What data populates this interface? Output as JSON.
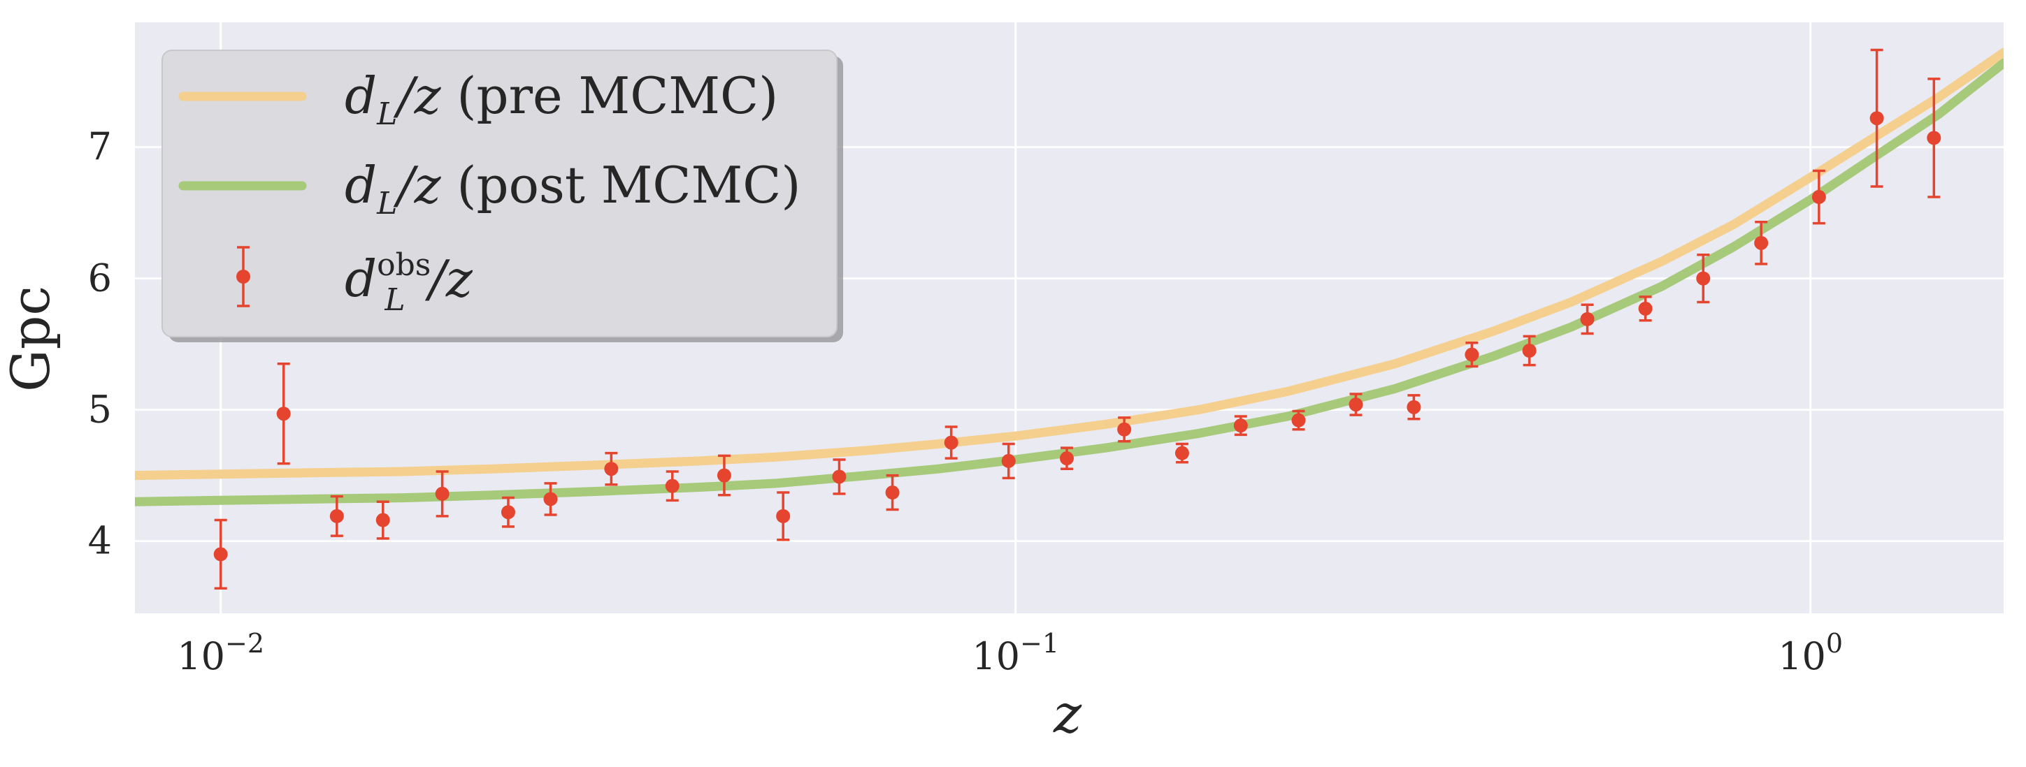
{
  "chart_data": {
    "type": "line",
    "xscale": "log",
    "xlim": [
      0.0078,
      1.75
    ],
    "ylim": [
      3.45,
      7.95
    ],
    "xlabel": "z",
    "ylabel": "Gpc",
    "grid": true,
    "legend_placement": "upper-left",
    "x_ticks": [
      {
        "value": 0.01,
        "base": "10",
        "exp": "−2"
      },
      {
        "value": 0.1,
        "base": "10",
        "exp": "−1"
      },
      {
        "value": 1,
        "base": "10",
        "exp": "0"
      }
    ],
    "y_ticks": [
      {
        "value": 4,
        "label": "4"
      },
      {
        "value": 5,
        "label": "5"
      },
      {
        "value": 6,
        "label": "6"
      },
      {
        "value": 7,
        "label": "7"
      }
    ],
    "colors": {
      "background": "#eaeaf2",
      "grid": "#ffffff",
      "pre": "#f5cf8e",
      "post": "#a6c97a",
      "obs": "#e5452f"
    },
    "series": [
      {
        "name": "d_L/z (pre MCMC)",
        "kind": "line",
        "color": "#f5cf8e",
        "x": [
          0.0078,
          0.01,
          0.013,
          0.017,
          0.022,
          0.03,
          0.04,
          0.05,
          0.065,
          0.08,
          0.1,
          0.13,
          0.17,
          0.22,
          0.3,
          0.4,
          0.5,
          0.65,
          0.8,
          1.0,
          1.2,
          1.45,
          1.75
        ],
        "y": [
          4.5,
          4.51,
          4.52,
          4.53,
          4.55,
          4.58,
          4.61,
          4.64,
          4.69,
          4.74,
          4.8,
          4.89,
          5.0,
          5.14,
          5.35,
          5.6,
          5.82,
          6.13,
          6.41,
          6.77,
          7.07,
          7.38,
          7.72
        ]
      },
      {
        "name": "d_L/z (post MCMC)",
        "kind": "line",
        "color": "#a6c97a",
        "x": [
          0.0078,
          0.01,
          0.013,
          0.017,
          0.022,
          0.03,
          0.04,
          0.05,
          0.065,
          0.08,
          0.1,
          0.13,
          0.17,
          0.22,
          0.3,
          0.4,
          0.5,
          0.65,
          0.8,
          1.0,
          1.2,
          1.45,
          1.75
        ],
        "y": [
          4.3,
          4.31,
          4.32,
          4.33,
          4.35,
          4.38,
          4.41,
          4.44,
          4.5,
          4.55,
          4.62,
          4.71,
          4.82,
          4.95,
          5.16,
          5.41,
          5.63,
          5.94,
          6.24,
          6.6,
          6.92,
          7.25,
          7.64
        ]
      },
      {
        "name": "d_L^obs/z",
        "kind": "errorbar",
        "color": "#e5452f",
        "points": [
          {
            "x": 0.01,
            "y": 3.9,
            "err": 0.26
          },
          {
            "x": 0.012,
            "y": 4.97,
            "err": 0.38
          },
          {
            "x": 0.014,
            "y": 4.19,
            "err": 0.15
          },
          {
            "x": 0.016,
            "y": 4.16,
            "err": 0.14
          },
          {
            "x": 0.019,
            "y": 4.36,
            "err": 0.17
          },
          {
            "x": 0.023,
            "y": 4.22,
            "err": 0.11
          },
          {
            "x": 0.026,
            "y": 4.32,
            "err": 0.12
          },
          {
            "x": 0.031,
            "y": 4.55,
            "err": 0.12
          },
          {
            "x": 0.037,
            "y": 4.42,
            "err": 0.11
          },
          {
            "x": 0.043,
            "y": 4.5,
            "err": 0.15
          },
          {
            "x": 0.051,
            "y": 4.19,
            "err": 0.18
          },
          {
            "x": 0.06,
            "y": 4.49,
            "err": 0.13
          },
          {
            "x": 0.07,
            "y": 4.37,
            "err": 0.13
          },
          {
            "x": 0.083,
            "y": 4.75,
            "err": 0.12
          },
          {
            "x": 0.098,
            "y": 4.61,
            "err": 0.13
          },
          {
            "x": 0.116,
            "y": 4.63,
            "err": 0.08
          },
          {
            "x": 0.137,
            "y": 4.85,
            "err": 0.09
          },
          {
            "x": 0.162,
            "y": 4.67,
            "err": 0.07
          },
          {
            "x": 0.192,
            "y": 4.88,
            "err": 0.07
          },
          {
            "x": 0.227,
            "y": 4.92,
            "err": 0.07
          },
          {
            "x": 0.268,
            "y": 5.04,
            "err": 0.08
          },
          {
            "x": 0.317,
            "y": 5.02,
            "err": 0.09
          },
          {
            "x": 0.375,
            "y": 5.42,
            "err": 0.09
          },
          {
            "x": 0.443,
            "y": 5.45,
            "err": 0.11
          },
          {
            "x": 0.524,
            "y": 5.69,
            "err": 0.11
          },
          {
            "x": 0.62,
            "y": 5.77,
            "err": 0.09
          },
          {
            "x": 0.733,
            "y": 6.0,
            "err": 0.18
          },
          {
            "x": 0.867,
            "y": 6.27,
            "err": 0.16
          },
          {
            "x": 1.025,
            "y": 6.62,
            "err": 0.2
          },
          {
            "x": 1.212,
            "y": 7.22,
            "err": 0.52
          },
          {
            "x": 1.43,
            "y": 7.07,
            "err": 0.45
          }
        ]
      }
    ],
    "legend": [
      {
        "key": "pre",
        "math": "d",
        "sub": "L",
        "sup": "",
        "tail": "/z",
        "text": " (pre MCMC)"
      },
      {
        "key": "post",
        "math": "d",
        "sub": "L",
        "sup": "",
        "tail": "/z",
        "text": " (post MCMC)"
      },
      {
        "key": "obs",
        "math": "d",
        "sub": "L",
        "sup": "obs",
        "tail": "/z",
        "text": ""
      }
    ]
  }
}
